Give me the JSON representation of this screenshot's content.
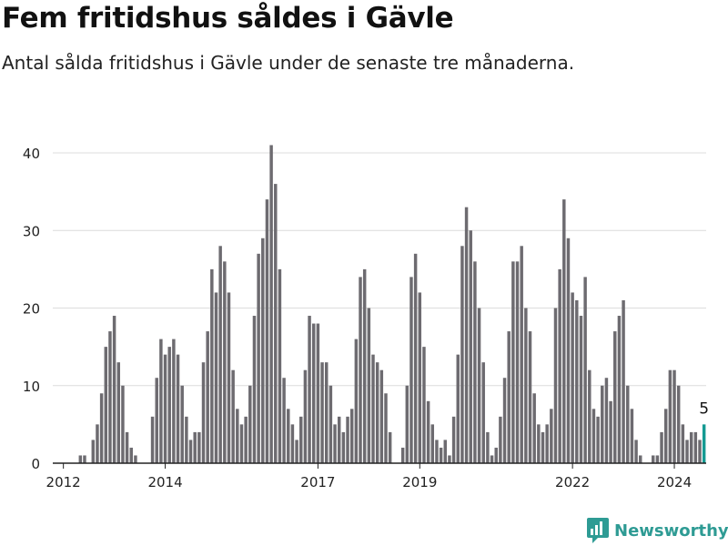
{
  "header": {
    "title": "Fem fritidshus såldes i Gävle",
    "subtitle": "Antal sålda fritidshus i Gävle under de senaste tre månaderna."
  },
  "brand": {
    "name": "Newsworthy",
    "color": "#2e9b94",
    "icon": "newsworthy-logo-icon"
  },
  "colors": {
    "bar": "#6d6b70",
    "highlight": "#149a92",
    "grid": "#dcdcdc",
    "axis": "#222222"
  },
  "chart_data": {
    "type": "bar",
    "x_start": "2011-11",
    "interval": "month",
    "ylim": [
      0,
      40
    ],
    "yticks": [
      0,
      10,
      20,
      30,
      40
    ],
    "xticks": [
      "2012",
      "2014",
      "2017",
      "2019",
      "2022",
      "2024"
    ],
    "grid": true,
    "values": [
      0,
      0,
      0,
      0,
      0,
      0,
      1,
      1,
      0,
      3,
      5,
      9,
      15,
      17,
      19,
      13,
      10,
      4,
      2,
      1,
      0,
      0,
      0,
      6,
      11,
      16,
      14,
      15,
      16,
      14,
      10,
      6,
      3,
      4,
      4,
      13,
      17,
      25,
      22,
      28,
      26,
      22,
      12,
      7,
      5,
      6,
      10,
      19,
      27,
      29,
      34,
      41,
      36,
      25,
      11,
      7,
      5,
      3,
      6,
      12,
      19,
      18,
      18,
      13,
      13,
      10,
      5,
      6,
      4,
      6,
      7,
      16,
      24,
      25,
      20,
      14,
      13,
      12,
      9,
      4,
      0,
      0,
      2,
      10,
      24,
      27,
      22,
      15,
      8,
      5,
      3,
      2,
      3,
      1,
      6,
      14,
      28,
      33,
      30,
      26,
      20,
      13,
      4,
      1,
      2,
      6,
      11,
      17,
      26,
      26,
      28,
      20,
      17,
      9,
      5,
      4,
      5,
      7,
      20,
      25,
      34,
      29,
      22,
      21,
      19,
      24,
      12,
      7,
      6,
      10,
      11,
      8,
      17,
      19,
      21,
      10,
      7,
      3,
      1,
      0,
      0,
      1,
      1,
      4,
      7,
      12,
      12,
      10,
      5,
      3,
      4,
      4,
      3,
      5
    ],
    "highlight": {
      "label": "5",
      "value": 5,
      "period": "last"
    }
  }
}
